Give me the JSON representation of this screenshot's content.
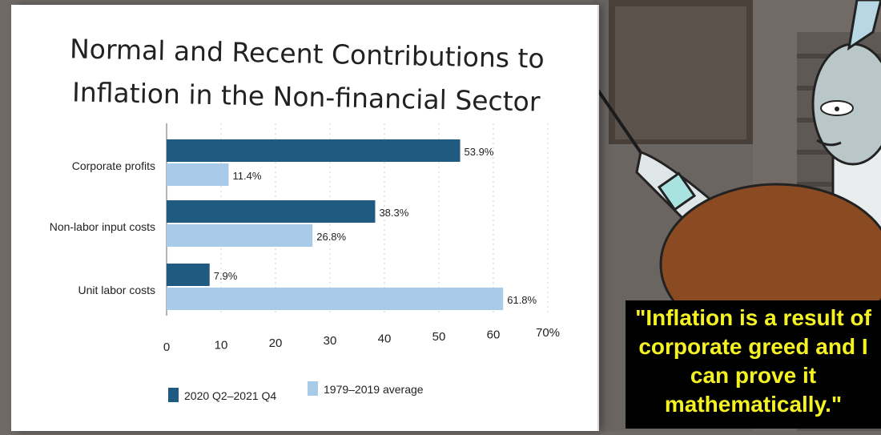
{
  "colors": {
    "series_recent": "#1f5a80",
    "series_average": "#a8cbea",
    "caption_text": "#f5f224",
    "caption_bg": "#000000"
  },
  "caption": {
    "text": "\"Inflation is a result of corporate greed and I can prove it mathematically.\""
  },
  "chart_data": {
    "type": "bar",
    "orientation": "horizontal",
    "title": "Normal and Recent Contributions to\nInflation in the Non-financial Sector",
    "categories": [
      "Corporate profits",
      "Non-labor input costs",
      "Unit labor costs"
    ],
    "series": [
      {
        "name": "2020 Q2–2021 Q4",
        "values": [
          53.9,
          38.3,
          7.9
        ]
      },
      {
        "name": "1979–2019 average",
        "values": [
          11.4,
          26.8,
          61.8
        ]
      }
    ],
    "data_labels": [
      [
        "53.9%",
        "38.3%",
        "7.9%"
      ],
      [
        "11.4%",
        "26.8%",
        "61.8%"
      ]
    ],
    "xlim": [
      0,
      70
    ],
    "ticks": [
      0,
      10,
      20,
      30,
      40,
      50,
      60,
      70
    ],
    "tick_labels": [
      "0",
      "10",
      "20",
      "30",
      "40",
      "50",
      "60",
      "70%"
    ],
    "grid": true,
    "legend_position": "bottom-left"
  }
}
